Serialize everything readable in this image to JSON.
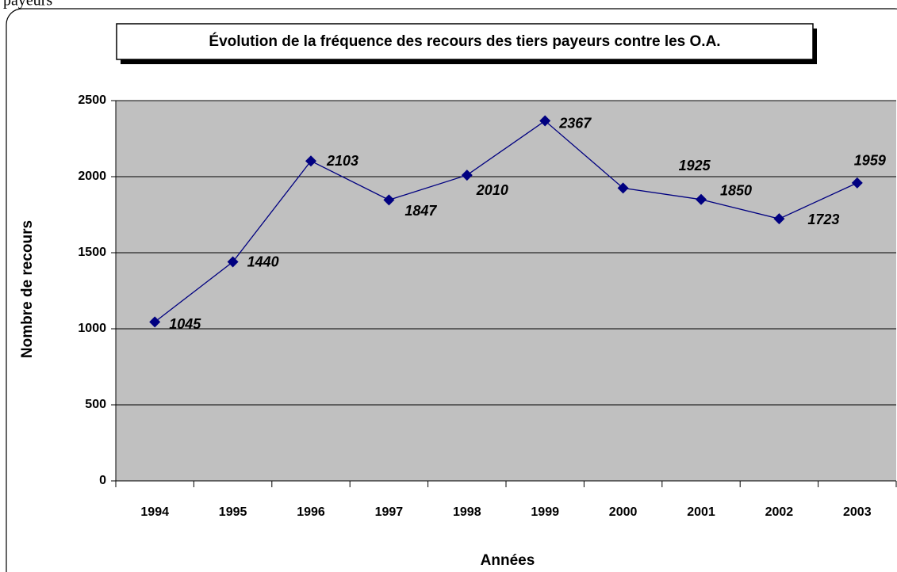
{
  "page_text": "payeurs",
  "chart_data": {
    "type": "line",
    "title": "Évolution de la fréquence des recours des tiers payeurs contre les O.A.",
    "x_label": "Années",
    "y_label": "Nombre de recours",
    "categories": [
      "1994",
      "1995",
      "1996",
      "1997",
      "1998",
      "1999",
      "2000",
      "2001",
      "2002",
      "2003"
    ],
    "values": [
      1045,
      1440,
      2103,
      1847,
      2010,
      2367,
      1925,
      1850,
      1723,
      1959
    ],
    "color": "#000080",
    "ylim": [
      0,
      2500
    ],
    "yticks": [
      0,
      500,
      1000,
      1500,
      2000,
      2500
    ],
    "grid": true
  }
}
